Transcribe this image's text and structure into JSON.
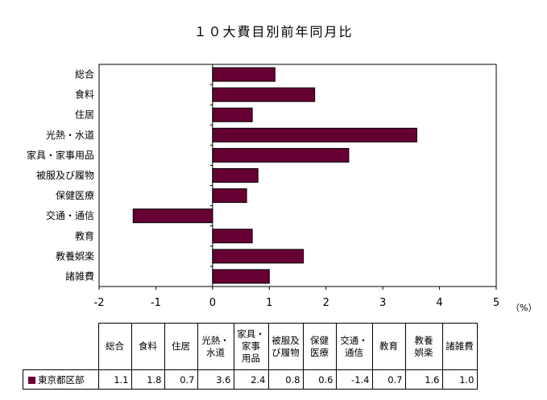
{
  "chart_data": {
    "type": "bar",
    "orientation": "horizontal",
    "title": "１０大費目別前年同月比",
    "categories": [
      "総合",
      "食料",
      "住居",
      "光熱・水道",
      "家具・家事用品",
      "被服及び履物",
      "保健医療",
      "交通・通信",
      "教育",
      "教養娯楽",
      "諸雑費"
    ],
    "series": [
      {
        "name": "東京都区部",
        "values": [
          1.1,
          1.8,
          0.7,
          3.6,
          2.4,
          0.8,
          0.6,
          -1.4,
          0.7,
          1.6,
          1.0
        ]
      }
    ],
    "xlim": [
      -2,
      5
    ],
    "xticks": [
      "-2",
      "-1",
      "0",
      "1",
      "2",
      "3",
      "4",
      "5"
    ],
    "unit_label": "（%）",
    "grid": false,
    "bar_color": "#660033"
  },
  "table": {
    "headers": [
      [
        "総合"
      ],
      [
        "食料"
      ],
      [
        "住居"
      ],
      [
        "光熱・",
        "水道"
      ],
      [
        "家具・",
        "家事",
        "用品"
      ],
      [
        "被服及",
        "び履物"
      ],
      [
        "保健",
        "医療"
      ],
      [
        "交通・",
        "通信"
      ],
      [
        "教育"
      ],
      [
        "教養",
        "娯楽"
      ],
      [
        "諸雑費"
      ]
    ],
    "row_label": "東京都区部",
    "values": [
      "1.1",
      "1.8",
      "0.7",
      "3.6",
      "2.4",
      "0.8",
      "0.6",
      "-1.4",
      "0.7",
      "1.6",
      "1.0"
    ]
  }
}
